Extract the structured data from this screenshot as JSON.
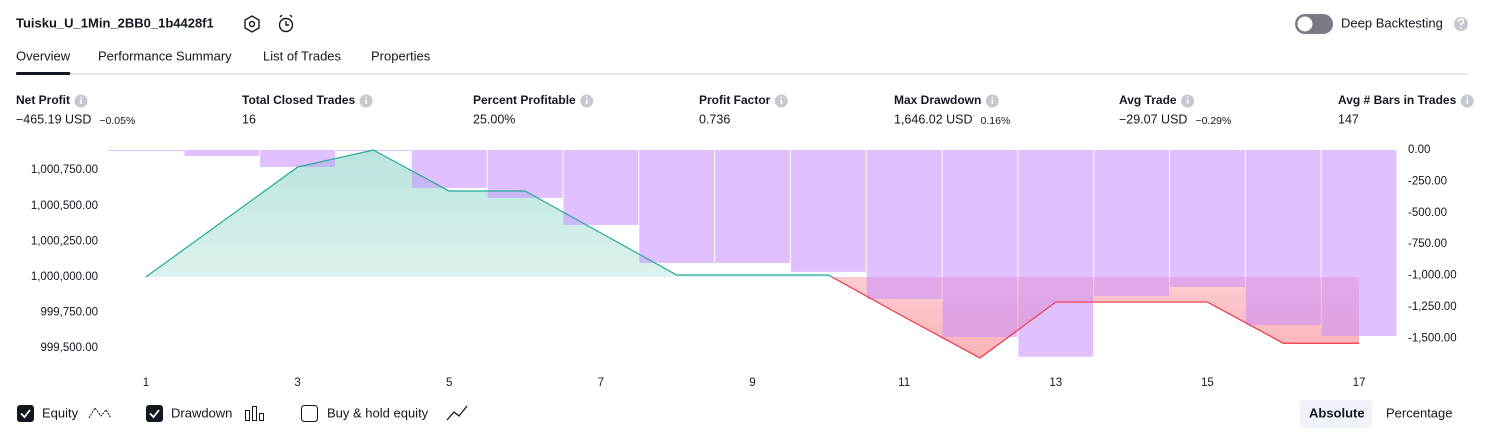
{
  "header": {
    "strategy": "Tuisku_U_1Min_2BB0_1b4428f1",
    "deep_backtesting": "Deep Backtesting",
    "deep_backtesting_on": false
  },
  "tabs": [
    "Overview",
    "Performance Summary",
    "List of Trades",
    "Properties"
  ],
  "active_tab": 0,
  "metrics": [
    {
      "label": "Net Profit",
      "value": "−465.19 USD",
      "change": "−0.05%",
      "tone": "negative"
    },
    {
      "label": "Total Closed Trades",
      "value": "16",
      "tone": "neutral"
    },
    {
      "label": "Percent Profitable",
      "value": "25.00%",
      "tone": "positive"
    },
    {
      "label": "Profit Factor",
      "value": "0.736",
      "tone": "negative"
    },
    {
      "label": "Max Drawdown",
      "value": "1,646.02 USD",
      "change": "0.16%",
      "tone": "negative"
    },
    {
      "label": "Avg Trade",
      "value": "−29.07 USD",
      "change": "−0.29%",
      "tone": "negative"
    },
    {
      "label": "Avg # Bars in Trades",
      "value": "147",
      "tone": "neutral"
    }
  ],
  "chart_data": {
    "type": "line",
    "x": [
      1,
      2,
      3,
      4,
      5,
      6,
      7,
      8,
      9,
      10,
      11,
      12,
      13,
      14,
      15,
      16,
      17
    ],
    "series": [
      {
        "name": "Equity",
        "color": "#22ab94",
        "negative_color": "#f23645",
        "checked": true,
        "values": [
          1000000,
          1000386,
          1000772,
          1000892,
          1000604,
          1000604,
          1000309,
          1000014,
          1000014,
          1000014,
          999719,
          999431,
          999824,
          999824,
          999824,
          999535,
          999535
        ]
      },
      {
        "name": "Drawdown",
        "type": "bar",
        "axis": "y2",
        "color": "#c98cff",
        "checked": true,
        "values": [
          -5,
          -48,
          -135,
          0,
          -303,
          -382,
          -597,
          -900,
          -900,
          -971,
          -1186,
          -1489,
          -1646,
          -1162,
          -1091,
          -1393,
          -1481
        ]
      }
    ],
    "xlim": [
      0.5,
      17.5
    ],
    "xticks": [
      1,
      3,
      5,
      7,
      9,
      11,
      13,
      15,
      17
    ],
    "ylim": [
      999382,
      1000892
    ],
    "yticks": [
      {
        "value": 999500,
        "label": "999,500.00"
      },
      {
        "value": 999750,
        "label": "999,750.00"
      },
      {
        "value": 1000000,
        "label": "1,000,000.00"
      },
      {
        "value": 1000250,
        "label": "1,000,250.00"
      },
      {
        "value": 1000500,
        "label": "1,000,500.00"
      },
      {
        "value": 1000750,
        "label": "1,000,750.00"
      }
    ],
    "y2lim": [
      -1712,
      0
    ],
    "y2ticks": [
      {
        "value": 0,
        "label": "0.00"
      },
      {
        "value": -250,
        "label": "-250.00"
      },
      {
        "value": -500,
        "label": "-500.00"
      },
      {
        "value": -750,
        "label": "-750.00"
      },
      {
        "value": -1000,
        "label": "-1,000.00"
      },
      {
        "value": -1250,
        "label": "-1,250.00"
      },
      {
        "value": -1500,
        "label": "-1,500.00"
      }
    ]
  },
  "buy_and_hold": {
    "label": "Buy & hold equity",
    "checked": false
  },
  "scale_modes": [
    "Absolute",
    "Percentage"
  ],
  "active_scale": 0
}
